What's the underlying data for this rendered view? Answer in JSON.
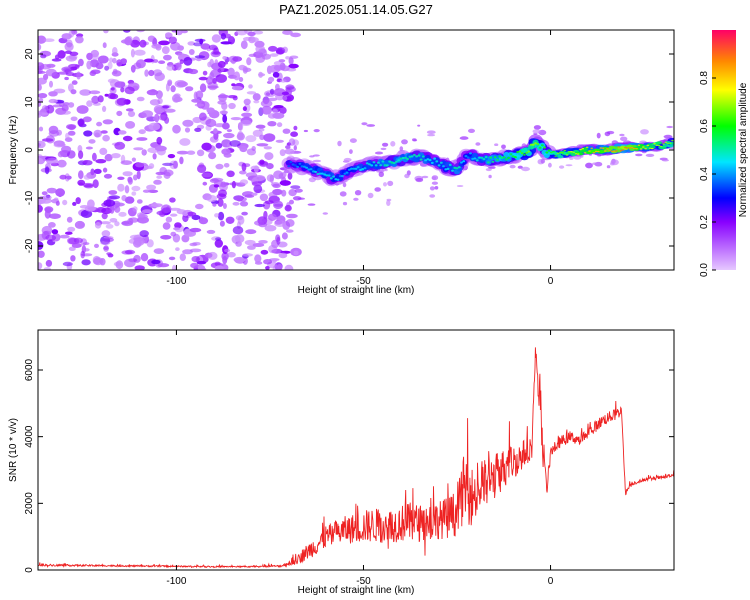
{
  "title": "PAZ1.2025.051.14.05.G27",
  "chart_data": [
    {
      "type": "heatmap",
      "xlabel": "Height of straight line (km)",
      "ylabel": "Frequency (Hz)",
      "xlim": [
        -137,
        33
      ],
      "ylim": [
        -25,
        25
      ],
      "xticks": [
        -100,
        -50,
        0
      ],
      "yticks": [
        -20,
        -10,
        0,
        10,
        20
      ],
      "noise_region_x": [
        -137,
        -70
      ],
      "ridge": {
        "x": [
          -70,
          -66,
          -62,
          -58,
          -55,
          -52,
          -48,
          -45,
          -42,
          -38,
          -35,
          -32,
          -28,
          -25,
          -22,
          -18,
          -15,
          -12,
          -9,
          -6,
          -4,
          -3,
          -1,
          2,
          5,
          10,
          15,
          20,
          25,
          30,
          33
        ],
        "y": [
          -3,
          -3.5,
          -4.5,
          -6,
          -5,
          -4,
          -3,
          -3,
          -2.5,
          -1.5,
          -1.5,
          -2,
          -3.5,
          -4,
          -1,
          -2,
          -2,
          -1.5,
          -1,
          -0.5,
          2,
          1,
          -0.5,
          -1,
          -0.5,
          0,
          0,
          0.5,
          0.5,
          1,
          1.5
        ],
        "amplitude": [
          0.35,
          0.4,
          0.45,
          0.45,
          0.4,
          0.45,
          0.45,
          0.5,
          0.5,
          0.5,
          0.5,
          0.45,
          0.45,
          0.5,
          0.4,
          0.5,
          0.55,
          0.55,
          0.6,
          0.65,
          0.7,
          0.6,
          0.6,
          0.65,
          0.7,
          0.8,
          0.85,
          0.9,
          0.75,
          0.7,
          0.65
        ]
      },
      "colorbar": {
        "label": "Normalized spectral amplitude",
        "range": [
          0,
          1
        ],
        "ticks": [
          0.0,
          0.2,
          0.4,
          0.6,
          0.8
        ]
      }
    },
    {
      "type": "line",
      "xlabel": "Height of straight line (km)",
      "ylabel": "SNR (10 * v/v)",
      "xlim": [
        -137,
        33
      ],
      "ylim": [
        0,
        7200
      ],
      "xticks": [
        -100,
        -50,
        0
      ],
      "yticks": [
        0,
        2000,
        4000,
        6000
      ],
      "series": [
        {
          "color": "#ee2222",
          "x": [
            -137,
            -130,
            -120,
            -110,
            -100,
            -90,
            -80,
            -72,
            -68,
            -65,
            -62,
            -60,
            -57,
            -55,
            -52,
            -50,
            -47,
            -45,
            -42,
            -40,
            -37,
            -35,
            -33,
            -30,
            -28,
            -25,
            -23,
            -21,
            -19,
            -17,
            -15,
            -13,
            -11,
            -9,
            -7,
            -5,
            -4,
            -3,
            -2,
            -1,
            0,
            2,
            5,
            8,
            10,
            12,
            14,
            16,
            18,
            19,
            20,
            21,
            22,
            25,
            28,
            31,
            33
          ],
          "y": [
            150,
            140,
            130,
            120,
            110,
            100,
            100,
            120,
            300,
            550,
            800,
            1000,
            1100,
            1200,
            1250,
            1300,
            1350,
            1300,
            1350,
            1400,
            1450,
            1400,
            1450,
            1500,
            1550,
            1700,
            2500,
            2200,
            2400,
            2600,
            2800,
            3000,
            3200,
            3300,
            3500,
            3700,
            6600,
            5200,
            3500,
            2400,
            3500,
            3800,
            4000,
            3900,
            4100,
            4300,
            4500,
            4600,
            4700,
            4800,
            2300,
            2500,
            2600,
            2700,
            2750,
            2800,
            2850
          ],
          "noise": [
            40,
            40,
            30,
            30,
            30,
            25,
            25,
            40,
            200,
            350,
            450,
            500,
            550,
            600,
            650,
            700,
            750,
            700,
            750,
            800,
            850,
            800,
            850,
            800,
            900,
            1000,
            1500,
            1300,
            1200,
            1100,
            1000,
            900,
            800,
            700,
            600,
            500,
            300,
            800,
            600,
            300,
            250,
            250,
            250,
            250,
            250,
            250,
            250,
            250,
            250,
            200,
            100,
            100,
            80,
            70,
            70,
            70,
            70
          ]
        }
      ]
    }
  ]
}
